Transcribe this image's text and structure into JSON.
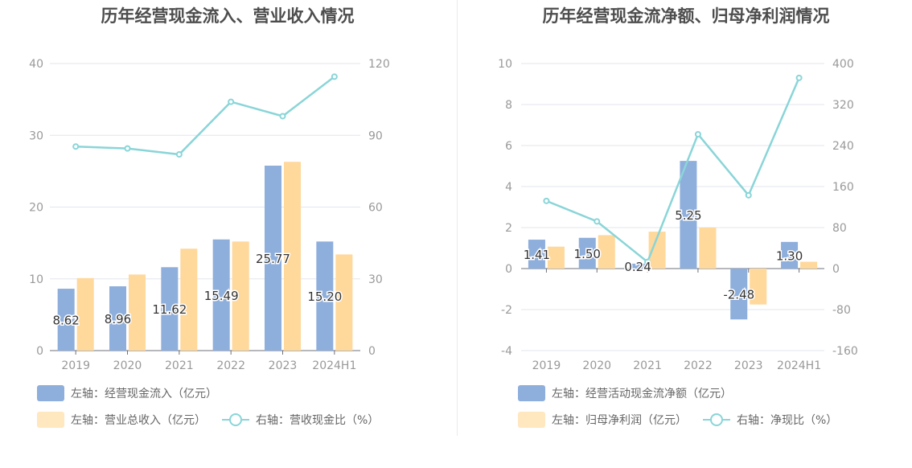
{
  "colors": {
    "bar1": "#8eaedc",
    "bar2": "#ffd89b",
    "line": "#8ad5d8",
    "axis_text": "#999999",
    "grid": "#e3e6ee",
    "title": "#4d4d4d"
  },
  "chart_data": [
    {
      "type": "bar",
      "title": "历年经营现金流入、营业收入情况",
      "categories": [
        "2019",
        "2020",
        "2021",
        "2022",
        "2023",
        "2024H1"
      ],
      "left_axis": {
        "ticks": [
          "0",
          "10",
          "20",
          "30",
          "40"
        ],
        "ylim": [
          0,
          40
        ]
      },
      "right_axis": {
        "ticks": [
          "0",
          "30",
          "60",
          "90",
          "120"
        ],
        "ylim": [
          0,
          120
        ]
      },
      "series": [
        {
          "name": "左轴：经营现金流入（亿元）",
          "kind": "bar",
          "axis": "left",
          "values": [
            8.62,
            8.96,
            11.62,
            15.49,
            25.77,
            15.2
          ],
          "labels": [
            "8.62",
            "8.96",
            "11.62",
            "15.49",
            "25.77",
            "15.20"
          ]
        },
        {
          "name": "左轴：营业总收入（亿元）",
          "kind": "bar",
          "axis": "left",
          "values": [
            10.1,
            10.6,
            14.2,
            15.2,
            26.3,
            13.4
          ]
        },
        {
          "name": "右轴：营收现金比（%）",
          "kind": "line",
          "axis": "right",
          "values": [
            85.3,
            84.5,
            82.0,
            104.0,
            98.0,
            114.5
          ]
        }
      ],
      "grid": true,
      "legend": "bottom"
    },
    {
      "type": "bar",
      "title": "历年经营现金流净额、归母净利润情况",
      "categories": [
        "2019",
        "2020",
        "2021",
        "2022",
        "2023",
        "2024H1"
      ],
      "left_axis": {
        "ticks": [
          "-4",
          "-2",
          "0",
          "2",
          "4",
          "6",
          "8",
          "10"
        ],
        "ylim": [
          -4,
          10
        ]
      },
      "right_axis": {
        "ticks": [
          "-160",
          "-80",
          "0",
          "80",
          "160",
          "240",
          "320",
          "400"
        ],
        "ylim": [
          -160,
          400
        ]
      },
      "series": [
        {
          "name": "左轴：经营活动现金流净额（亿元）",
          "kind": "bar",
          "axis": "left",
          "values": [
            1.41,
            1.5,
            0.24,
            5.25,
            -2.48,
            1.3
          ],
          "labels": [
            "1.41",
            "1.50",
            "0.24",
            "5.25",
            "-2.48",
            "1.30"
          ]
        },
        {
          "name": "左轴：归母净利润（亿元）",
          "kind": "bar",
          "axis": "left",
          "values": [
            1.07,
            1.63,
            1.8,
            2.0,
            -1.75,
            0.33
          ]
        },
        {
          "name": "右轴：净现比（%）",
          "kind": "line",
          "axis": "right",
          "values": [
            132,
            92,
            13,
            262,
            143,
            372
          ]
        }
      ],
      "grid": true,
      "legend": "bottom"
    }
  ]
}
